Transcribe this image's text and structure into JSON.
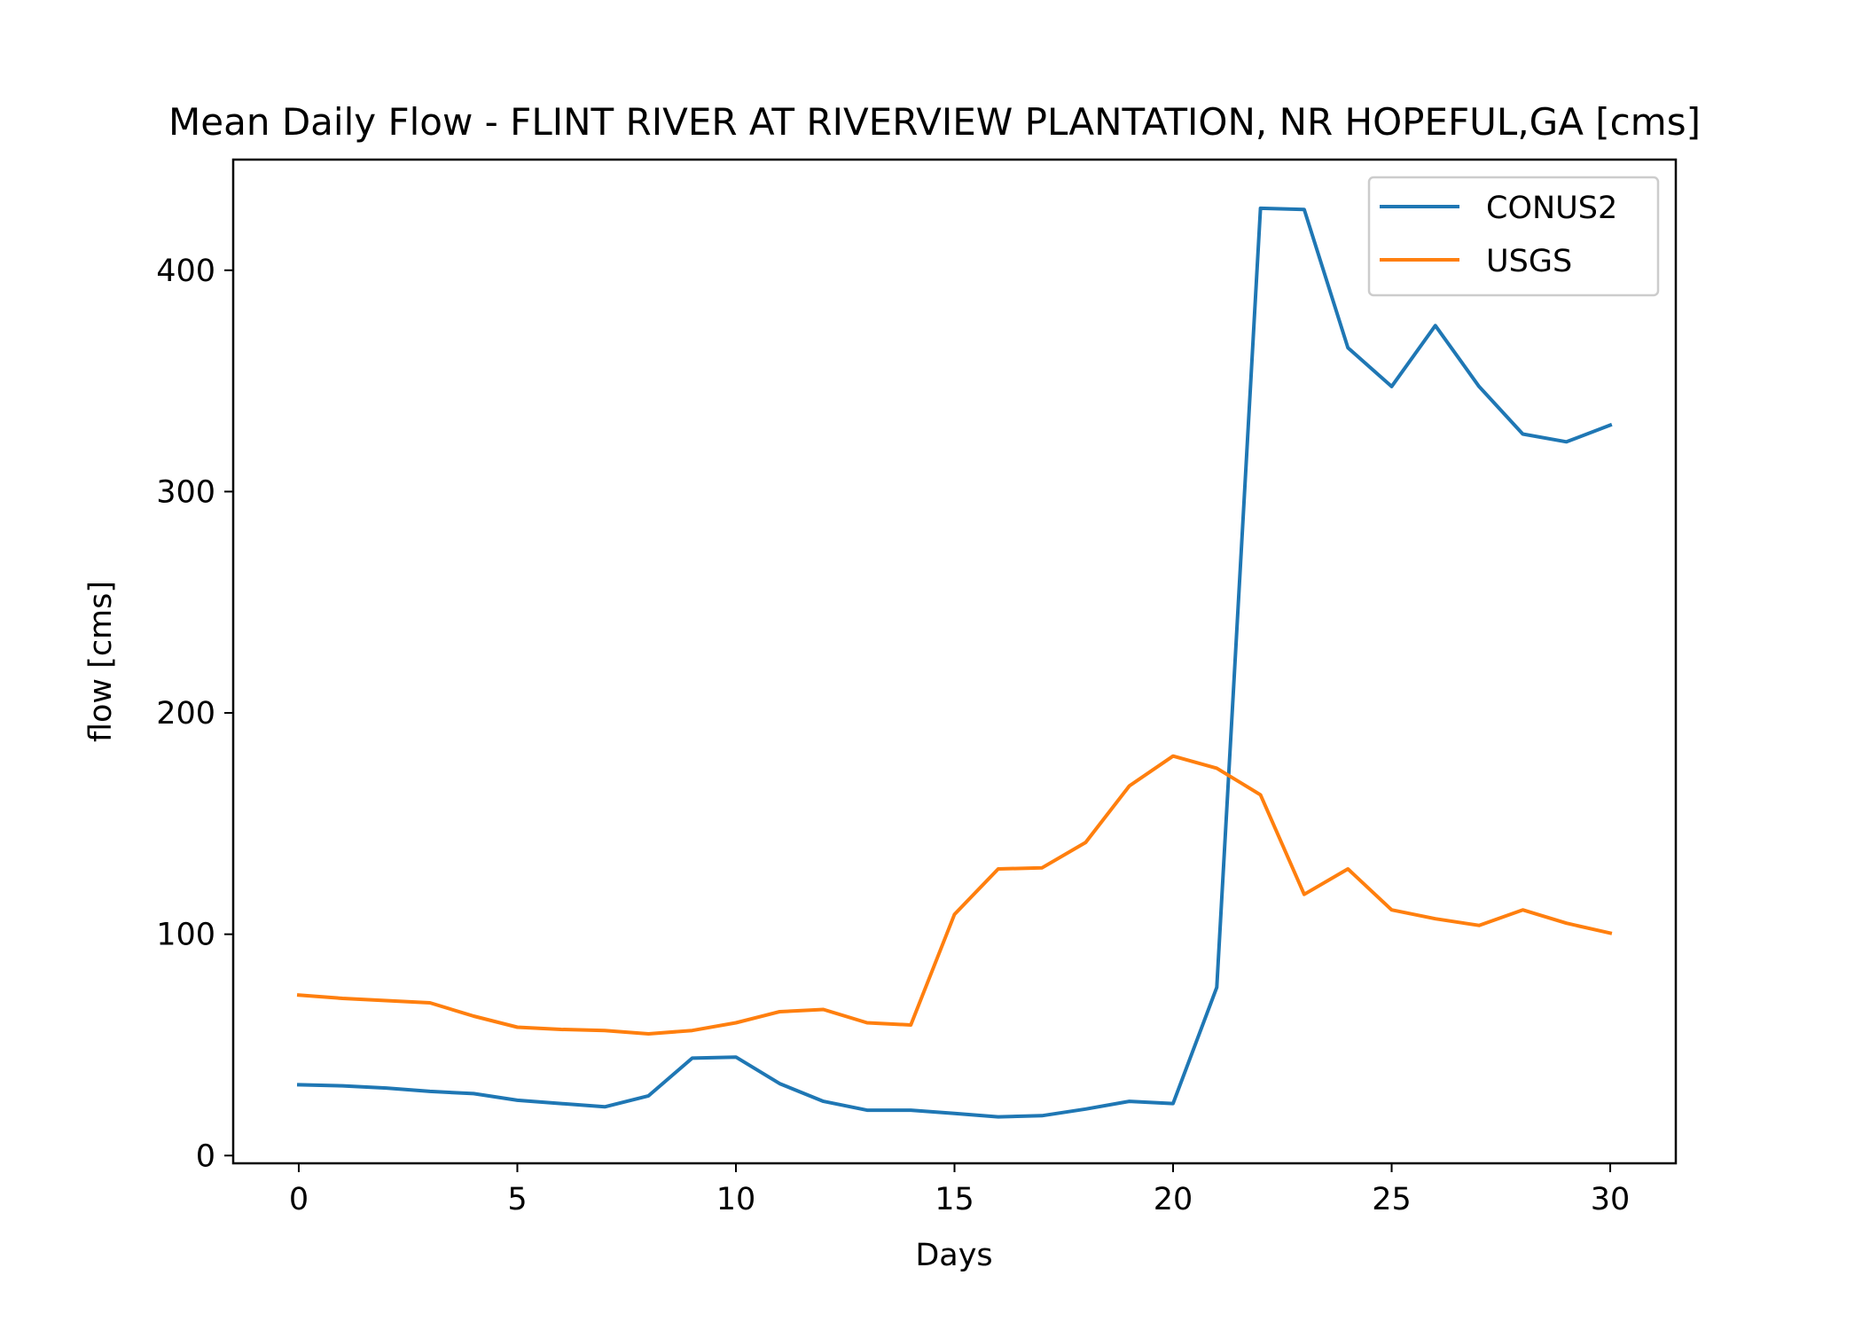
{
  "chart_data": {
    "type": "line",
    "title": "Mean Daily Flow - FLINT RIVER AT RIVERVIEW PLANTATION, NR HOPEFUL,GA [cms]",
    "xlabel": "Days",
    "ylabel": "flow [cms]",
    "xlim": [
      -1.5,
      31.5
    ],
    "ylim": [
      -3.5,
      450
    ],
    "xticks": [
      0,
      5,
      10,
      15,
      20,
      25,
      30
    ],
    "yticks": [
      0,
      100,
      200,
      300,
      400
    ],
    "grid": false,
    "legend_position": "top-right",
    "x": [
      0,
      1,
      2,
      3,
      4,
      5,
      6,
      7,
      8,
      9,
      10,
      11,
      12,
      13,
      14,
      15,
      16,
      17,
      18,
      19,
      20,
      21,
      22,
      23,
      24,
      25,
      26,
      27,
      28,
      29,
      30
    ],
    "series": [
      {
        "name": "CONUS2",
        "color": "#1f77b4",
        "values": [
          32,
          31.5,
          30.5,
          29,
          28,
          25,
          23.5,
          22,
          27,
          44,
          44.5,
          32.5,
          24.5,
          20.5,
          20.5,
          19,
          17.5,
          18,
          21,
          24.5,
          23.5,
          76,
          428,
          427.5,
          365,
          347.5,
          375,
          347.5,
          326,
          322.5,
          330
        ]
      },
      {
        "name": "USGS",
        "color": "#ff7f0e",
        "values": [
          72.5,
          71,
          70,
          69,
          63,
          58,
          57,
          56.5,
          55,
          56.5,
          60,
          65,
          66,
          60,
          59,
          109,
          129.5,
          130,
          141.5,
          167,
          180.5,
          175,
          163,
          118,
          129.5,
          111,
          107,
          104,
          111,
          105,
          100.5
        ]
      }
    ]
  }
}
